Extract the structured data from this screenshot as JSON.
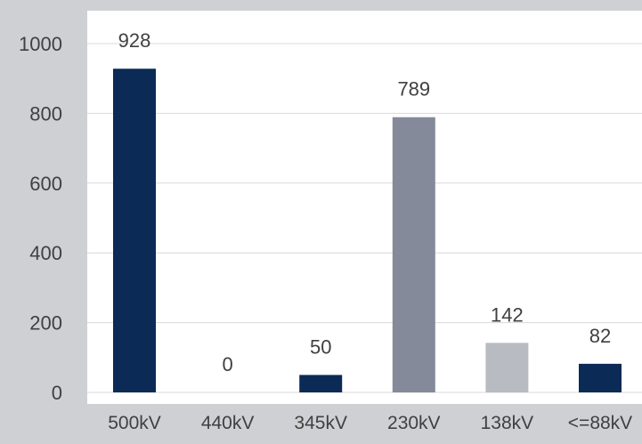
{
  "chart_data": {
    "type": "bar",
    "title": "",
    "xlabel": "",
    "ylabel": "",
    "categories": [
      "500kV",
      "440kV",
      "345kV",
      "230kV",
      "138kV",
      "<=88kV"
    ],
    "values": [
      928,
      0,
      50,
      789,
      142,
      82
    ],
    "data_labels": [
      "928",
      "0",
      "50",
      "789",
      "142",
      "82"
    ],
    "bar_colors": [
      "#0b2a56",
      "#0b2a56",
      "#0b2a56",
      "#848a99",
      "#b9bbc2",
      "#0b2a56"
    ],
    "ylim": [
      0,
      1000
    ],
    "yticks": [
      0,
      200,
      400,
      600,
      800,
      1000
    ],
    "grid": true,
    "legend": "none"
  },
  "colors": {
    "page_background": "#cfd0d4",
    "plot_background": "#ffffff",
    "gridline": "#d9d9d9",
    "text": "#404040"
  }
}
